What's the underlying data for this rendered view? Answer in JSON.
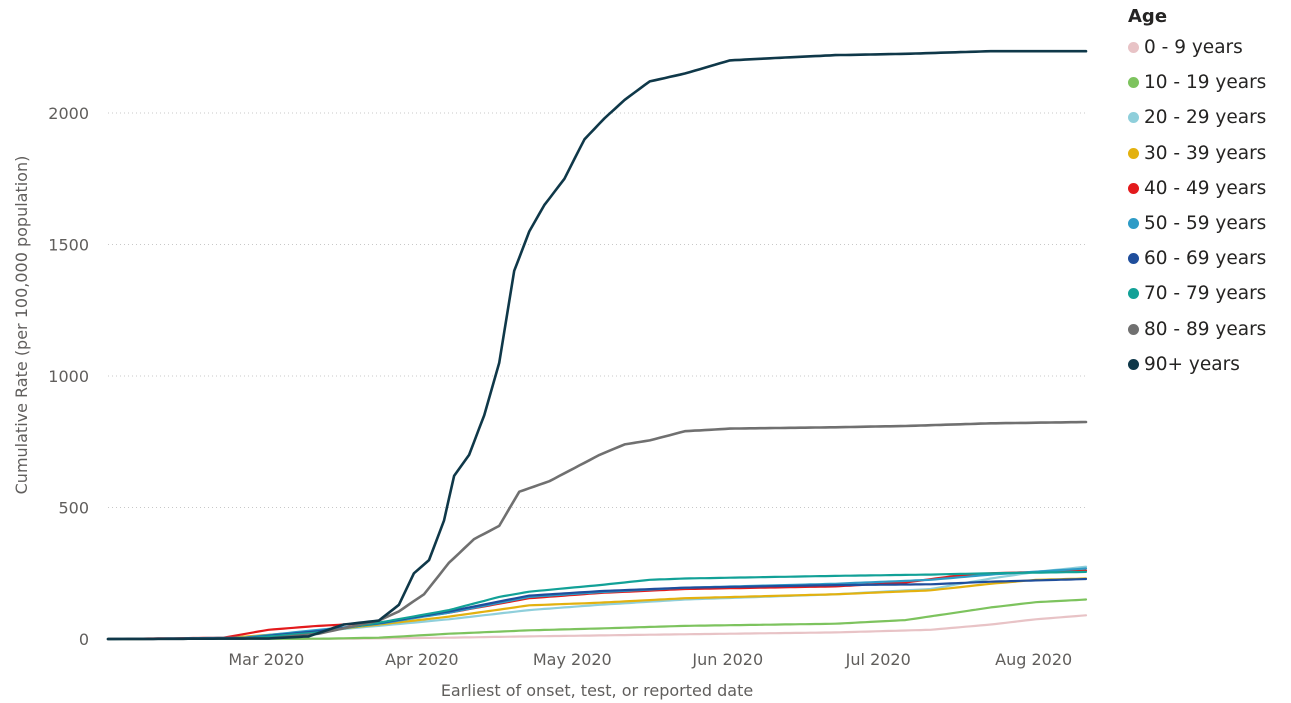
{
  "chart_data": {
    "type": "line",
    "title": "",
    "xlabel": "Earliest of onset, test, or reported date",
    "ylabel": "Cumulative Rate (per 100,000 population)",
    "ylim": [
      0,
      2250
    ],
    "yticks": [
      0,
      500,
      1000,
      1500,
      2000
    ],
    "xlim": [
      "2020-02-07",
      "2020-08-20"
    ],
    "xticks": [
      {
        "date": "2020-03-01",
        "label": "Mar 2020"
      },
      {
        "date": "2020-04-01",
        "label": "Apr 2020"
      },
      {
        "date": "2020-05-01",
        "label": "May 2020"
      },
      {
        "date": "2020-06-01",
        "label": "Jun 2020"
      },
      {
        "date": "2020-07-01",
        "label": "Jul 2020"
      },
      {
        "date": "2020-08-01",
        "label": "Aug 2020"
      }
    ],
    "grid": {
      "horizontal": true,
      "style": "dotted"
    },
    "legend": {
      "title": "Age",
      "placement": "top-right"
    },
    "series": [
      {
        "name": "0 - 9 years",
        "color": "#e8c3c6",
        "points": [
          [
            "2020-02-07",
            0
          ],
          [
            "2020-03-25",
            1
          ],
          [
            "2020-04-15",
            5
          ],
          [
            "2020-05-01",
            10
          ],
          [
            "2020-06-01",
            18
          ],
          [
            "2020-07-01",
            25
          ],
          [
            "2020-07-20",
            35
          ],
          [
            "2020-08-01",
            55
          ],
          [
            "2020-08-10",
            75
          ],
          [
            "2020-08-20",
            90
          ]
        ]
      },
      {
        "name": "10 - 19 years",
        "color": "#7dc35e",
        "points": [
          [
            "2020-02-07",
            0
          ],
          [
            "2020-03-20",
            1
          ],
          [
            "2020-04-01",
            5
          ],
          [
            "2020-04-15",
            20
          ],
          [
            "2020-05-01",
            33
          ],
          [
            "2020-05-15",
            40
          ],
          [
            "2020-06-01",
            50
          ],
          [
            "2020-07-01",
            58
          ],
          [
            "2020-07-15",
            72
          ],
          [
            "2020-07-25",
            100
          ],
          [
            "2020-08-01",
            120
          ],
          [
            "2020-08-10",
            140
          ],
          [
            "2020-08-20",
            150
          ]
        ]
      },
      {
        "name": "20 - 29 years",
        "color": "#8fcfdb",
        "points": [
          [
            "2020-02-07",
            0
          ],
          [
            "2020-03-01",
            2
          ],
          [
            "2020-03-20",
            30
          ],
          [
            "2020-04-01",
            50
          ],
          [
            "2020-04-15",
            75
          ],
          [
            "2020-05-01",
            110
          ],
          [
            "2020-05-15",
            130
          ],
          [
            "2020-06-01",
            150
          ],
          [
            "2020-07-01",
            170
          ],
          [
            "2020-07-20",
            190
          ],
          [
            "2020-08-01",
            230
          ],
          [
            "2020-08-10",
            255
          ],
          [
            "2020-08-20",
            275
          ]
        ]
      },
      {
        "name": "30 - 39 years",
        "color": "#e3b10f",
        "points": [
          [
            "2020-02-07",
            0
          ],
          [
            "2020-03-01",
            3
          ],
          [
            "2020-03-20",
            30
          ],
          [
            "2020-04-01",
            55
          ],
          [
            "2020-04-15",
            85
          ],
          [
            "2020-05-01",
            128
          ],
          [
            "2020-05-15",
            138
          ],
          [
            "2020-06-01",
            155
          ],
          [
            "2020-07-01",
            170
          ],
          [
            "2020-07-20",
            185
          ],
          [
            "2020-08-01",
            210
          ],
          [
            "2020-08-10",
            225
          ],
          [
            "2020-08-20",
            230
          ]
        ]
      },
      {
        "name": "40 - 49 years",
        "color": "#e31a1c",
        "points": [
          [
            "2020-02-07",
            0
          ],
          [
            "2020-03-01",
            5
          ],
          [
            "2020-03-10",
            35
          ],
          [
            "2020-03-20",
            50
          ],
          [
            "2020-04-01",
            62
          ],
          [
            "2020-04-15",
            100
          ],
          [
            "2020-05-01",
            155
          ],
          [
            "2020-05-15",
            175
          ],
          [
            "2020-06-01",
            190
          ],
          [
            "2020-07-01",
            200
          ],
          [
            "2020-07-15",
            215
          ],
          [
            "2020-07-25",
            240
          ],
          [
            "2020-08-01",
            250
          ],
          [
            "2020-08-20",
            260
          ]
        ]
      },
      {
        "name": "50 - 59 years",
        "color": "#2e9bc6",
        "points": [
          [
            "2020-02-07",
            0
          ],
          [
            "2020-03-05",
            5
          ],
          [
            "2020-03-20",
            35
          ],
          [
            "2020-04-01",
            58
          ],
          [
            "2020-04-15",
            100
          ],
          [
            "2020-05-01",
            160
          ],
          [
            "2020-05-15",
            178
          ],
          [
            "2020-06-01",
            195
          ],
          [
            "2020-07-01",
            210
          ],
          [
            "2020-07-20",
            225
          ],
          [
            "2020-08-01",
            245
          ],
          [
            "2020-08-20",
            268
          ]
        ]
      },
      {
        "name": "60 - 69 years",
        "color": "#1f4e9c",
        "points": [
          [
            "2020-02-07",
            0
          ],
          [
            "2020-03-05",
            3
          ],
          [
            "2020-03-20",
            30
          ],
          [
            "2020-04-01",
            60
          ],
          [
            "2020-04-15",
            105
          ],
          [
            "2020-05-01",
            165
          ],
          [
            "2020-05-15",
            182
          ],
          [
            "2020-06-01",
            195
          ],
          [
            "2020-07-01",
            205
          ],
          [
            "2020-07-20",
            208
          ],
          [
            "2020-08-01",
            218
          ],
          [
            "2020-08-20",
            228
          ]
        ]
      },
      {
        "name": "70 - 79 years",
        "color": "#12a197",
        "points": [
          [
            "2020-02-07",
            0
          ],
          [
            "2020-03-05",
            2
          ],
          [
            "2020-03-20",
            25
          ],
          [
            "2020-04-01",
            62
          ],
          [
            "2020-04-15",
            110
          ],
          [
            "2020-04-25",
            160
          ],
          [
            "2020-05-01",
            180
          ],
          [
            "2020-05-15",
            205
          ],
          [
            "2020-05-25",
            225
          ],
          [
            "2020-06-01",
            230
          ],
          [
            "2020-07-01",
            240
          ],
          [
            "2020-07-20",
            245
          ],
          [
            "2020-08-01",
            250
          ],
          [
            "2020-08-20",
            255
          ]
        ]
      },
      {
        "name": "80 - 89 years",
        "color": "#707070",
        "points": [
          [
            "2020-02-07",
            0
          ],
          [
            "2020-03-10",
            2
          ],
          [
            "2020-03-20",
            20
          ],
          [
            "2020-04-01",
            70
          ],
          [
            "2020-04-05",
            105
          ],
          [
            "2020-04-10",
            170
          ],
          [
            "2020-04-15",
            290
          ],
          [
            "2020-04-20",
            380
          ],
          [
            "2020-04-25",
            430
          ],
          [
            "2020-04-29",
            560
          ],
          [
            "2020-05-05",
            600
          ],
          [
            "2020-05-10",
            650
          ],
          [
            "2020-05-15",
            700
          ],
          [
            "2020-05-20",
            740
          ],
          [
            "2020-05-25",
            755
          ],
          [
            "2020-06-01",
            790
          ],
          [
            "2020-06-10",
            800
          ],
          [
            "2020-07-01",
            805
          ],
          [
            "2020-07-15",
            810
          ],
          [
            "2020-08-01",
            820
          ],
          [
            "2020-08-20",
            825
          ]
        ]
      },
      {
        "name": "90+ years",
        "color": "#0f3849",
        "points": [
          [
            "2020-02-07",
            0
          ],
          [
            "2020-03-10",
            2
          ],
          [
            "2020-03-18",
            10
          ],
          [
            "2020-03-25",
            55
          ],
          [
            "2020-04-01",
            70
          ],
          [
            "2020-04-05",
            130
          ],
          [
            "2020-04-08",
            250
          ],
          [
            "2020-04-11",
            300
          ],
          [
            "2020-04-14",
            450
          ],
          [
            "2020-04-16",
            620
          ],
          [
            "2020-04-19",
            700
          ],
          [
            "2020-04-22",
            850
          ],
          [
            "2020-04-25",
            1050
          ],
          [
            "2020-04-28",
            1400
          ],
          [
            "2020-05-01",
            1550
          ],
          [
            "2020-05-04",
            1650
          ],
          [
            "2020-05-08",
            1750
          ],
          [
            "2020-05-12",
            1900
          ],
          [
            "2020-05-16",
            1980
          ],
          [
            "2020-05-20",
            2050
          ],
          [
            "2020-05-25",
            2120
          ],
          [
            "2020-06-01",
            2150
          ],
          [
            "2020-06-10",
            2200
          ],
          [
            "2020-06-20",
            2210
          ],
          [
            "2020-07-01",
            2220
          ],
          [
            "2020-07-15",
            2225
          ],
          [
            "2020-08-01",
            2235
          ],
          [
            "2020-08-20",
            2235
          ]
        ]
      }
    ]
  }
}
